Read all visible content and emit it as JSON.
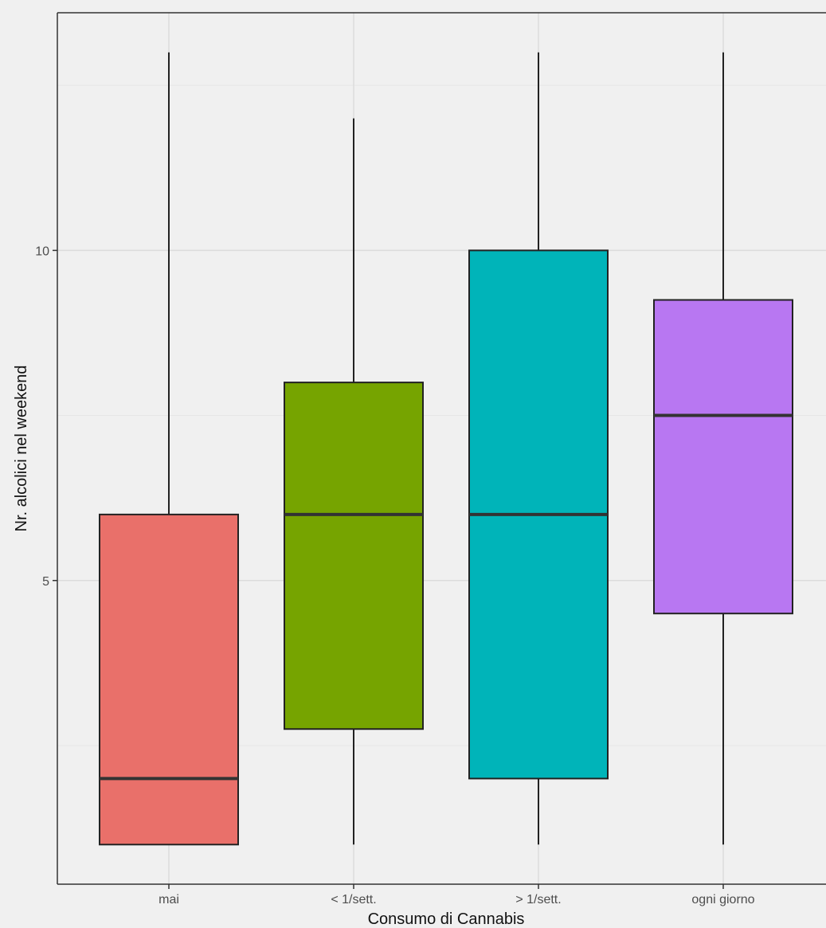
{
  "chart_data": {
    "type": "boxplot",
    "title": "",
    "xlabel": "Consumo di Cannabis",
    "ylabel": "Nr. alcolici nel weekend",
    "ylim": [
      0.4,
      13.6
    ],
    "y_ticks": [
      5,
      10
    ],
    "grid": true,
    "legend": "none",
    "categories": [
      "mai",
      "< 1/sett.",
      "> 1/sett.",
      "ogni giorno"
    ],
    "boxes": [
      {
        "category": "mai",
        "min": 1,
        "q1": 1,
        "median": 2,
        "q3": 6,
        "max": 13,
        "color": "#E9706A"
      },
      {
        "category": "< 1/sett.",
        "min": 1,
        "q1": 2.75,
        "median": 6,
        "q3": 8,
        "max": 12,
        "color": "#76A400"
      },
      {
        "category": "> 1/sett.",
        "min": 1,
        "q1": 2,
        "median": 6,
        "q3": 10,
        "max": 13,
        "color": "#00B4B9"
      },
      {
        "category": "ogni giorno",
        "min": 1,
        "q1": 4.5,
        "median": 7.5,
        "q3": 9.25,
        "max": 13,
        "color": "#B877F2"
      }
    ]
  },
  "colors": {
    "panel_background": "#f0f0f0",
    "grid_major": "#dcdcdc",
    "grid_minor": "#e6e6e6",
    "box_border": "#222222",
    "median_line": "#333333"
  }
}
